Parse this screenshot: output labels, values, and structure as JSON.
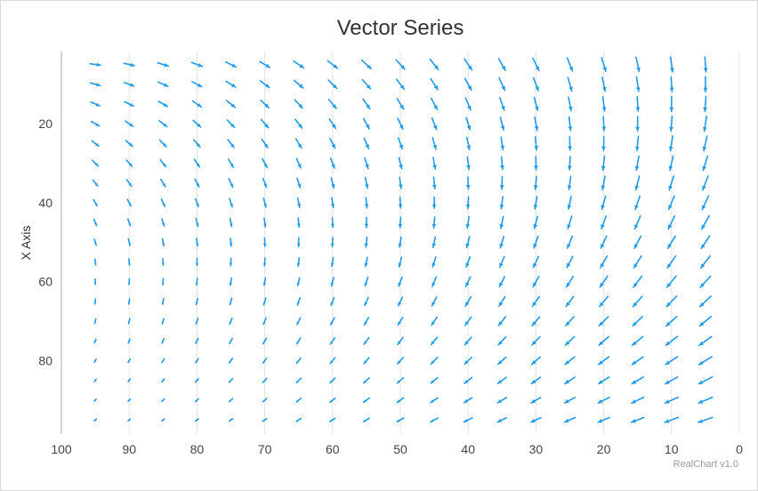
{
  "chart_data": {
    "type": "vector",
    "title": "Vector Series",
    "ylabel": "X Axis",
    "xlim": [
      100,
      0
    ],
    "ylim": [
      0,
      100
    ],
    "x_reversed": true,
    "y_reversed": true,
    "x_ticks": [
      100,
      90,
      80,
      70,
      60,
      50,
      40,
      30,
      20,
      10,
      0
    ],
    "y_ticks": [
      20,
      40,
      60,
      80
    ],
    "grid": "vertical",
    "credit": "RealChart v1.0",
    "color": "#1e9bea",
    "vector_field": {
      "x_values": [
        95,
        90,
        85,
        80,
        75,
        70,
        65,
        60,
        55,
        50,
        45,
        40,
        35,
        30,
        25,
        20,
        15,
        10,
        5
      ],
      "y_start": 5,
      "y_step": 5,
      "y_count": 19,
      "rule": "vector at (x, y): length grows with x/100, direction rotates from pointing right at x=100 toward down at x=0 for small y, toward left at large y"
    }
  }
}
